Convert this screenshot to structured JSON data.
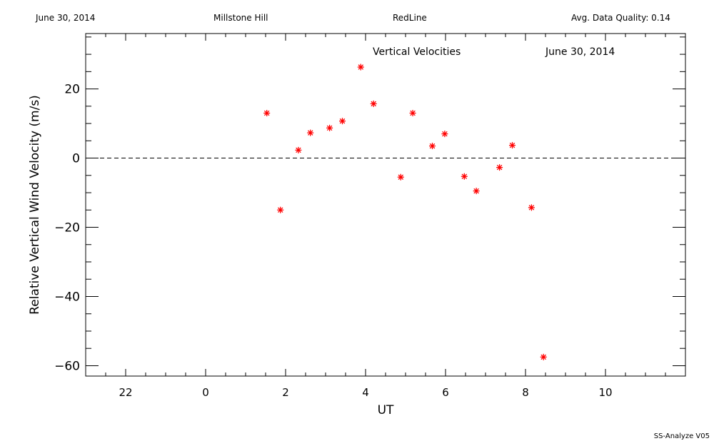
{
  "header": {
    "date": "June 30, 2014",
    "site": "Millstone Hill",
    "instrument": "RedLine",
    "quality": "Avg. Data Quality: 0.14"
  },
  "footer": "SS-Analyze V05",
  "chart_data": {
    "type": "scatter",
    "title": "Vertical Velocities",
    "subtitle": "June 30, 2014",
    "xlabel": "UT",
    "ylabel": "Relative Vertical Wind Velocity (m/s)",
    "xlim": [
      21,
      36
    ],
    "ylim": [
      -63,
      36
    ],
    "x_ticks": [
      22,
      24,
      26,
      28,
      30,
      32,
      34
    ],
    "x_tick_labels": [
      "22",
      "0",
      "2",
      "4",
      "6",
      "8",
      "10"
    ],
    "y_ticks": [
      -60,
      -40,
      -20,
      0,
      20
    ],
    "y_tick_labels": [
      "−60",
      "−40",
      "−20",
      "0",
      "20"
    ],
    "reference_line": 0,
    "marker": "asterisk",
    "color": "#ff0000",
    "series": [
      {
        "x": [
          25.53,
          25.87,
          26.32,
          26.62,
          27.1,
          27.42,
          27.88,
          28.2,
          28.88,
          29.18,
          29.67,
          29.98,
          30.47,
          30.77,
          31.35,
          31.67,
          32.15,
          32.45
        ],
        "y": [
          13,
          -15,
          2.3,
          7.3,
          8.7,
          10.7,
          26.3,
          15.7,
          -5.5,
          13,
          3.5,
          7,
          -5.3,
          -9.5,
          -2.7,
          3.7,
          -14.3,
          -57.5
        ]
      }
    ]
  }
}
